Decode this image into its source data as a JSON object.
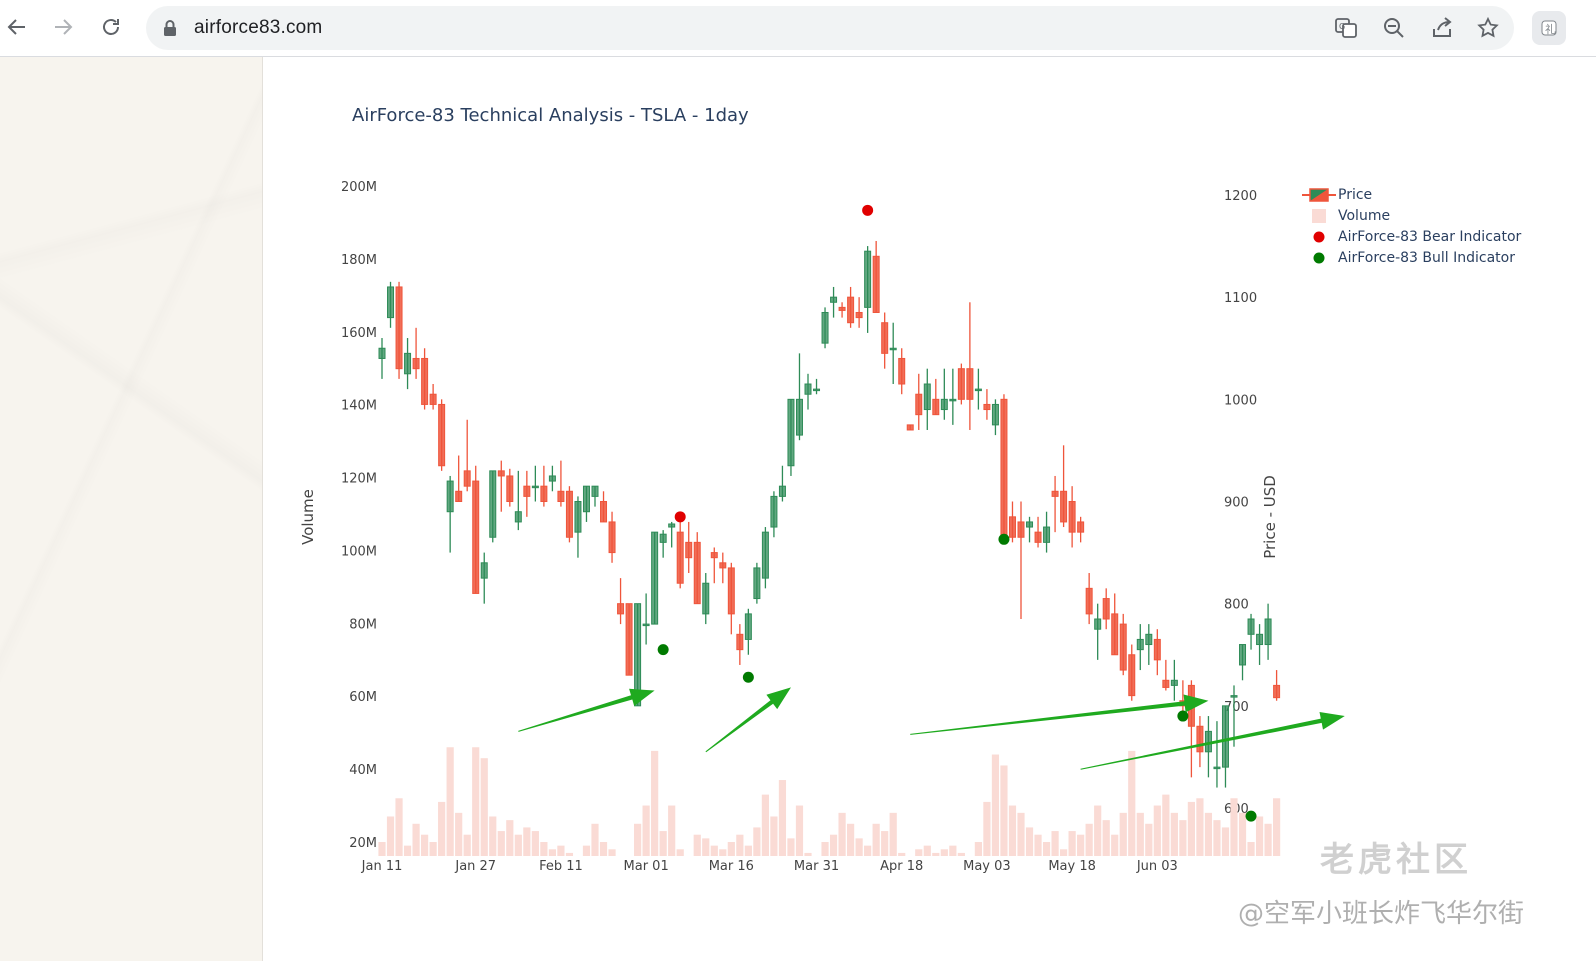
{
  "browser": {
    "url": "airforce83.com",
    "icons": [
      "back-arrow-icon",
      "forward-arrow-icon",
      "reload-icon",
      "lock-icon",
      "translate-icon",
      "zoom-out-icon",
      "share-icon",
      "star-icon",
      "extension-icon"
    ]
  },
  "watermark": {
    "logo_text": "老虎社区",
    "handle_text": "@空军小班长炸飞华尔街"
  },
  "chart_data": {
    "type": "candlestick",
    "title": "AirForce-83 Technical Analysis - TSLA - 1day",
    "ylabel_left": "Volume",
    "ylabel_right": "Price - USD",
    "volume_ticks": [
      "20M",
      "40M",
      "60M",
      "80M",
      "100M",
      "120M",
      "140M",
      "160M",
      "180M",
      "200M"
    ],
    "volume_tick_values": [
      20,
      40,
      60,
      80,
      100,
      120,
      140,
      160,
      180,
      200
    ],
    "volume_range": [
      16,
      202
    ],
    "price_ticks": [
      "600",
      "700",
      "800",
      "900",
      "1000",
      "1100",
      "1200"
    ],
    "price_tick_values": [
      600,
      700,
      800,
      900,
      1000,
      1100,
      1200
    ],
    "price_range": [
      560,
      1210
    ],
    "x_ticks": [
      "Jan 11",
      "Jan 27",
      "Feb 11",
      "Mar 01",
      "Mar 16",
      "Mar 31",
      "Apr 18",
      "May 03",
      "May 18",
      "Jun 03"
    ],
    "x_tick_index": [
      0,
      11,
      21,
      31,
      41,
      51,
      61,
      71,
      81,
      91
    ],
    "legend": [
      {
        "name": "Price",
        "symbol": "candle",
        "color": "#2e8b57"
      },
      {
        "name": "Volume",
        "symbol": "square",
        "color": "#fadbd5"
      },
      {
        "name": "AirForce-83 Bear Indicator",
        "symbol": "dot",
        "color": "#e00000"
      },
      {
        "name": "AirForce-83 Bull Indicator",
        "symbol": "dot",
        "color": "#007a00"
      }
    ],
    "colors": {
      "up": "#2e8b57",
      "down": "#ef553b",
      "volume": "#fadbd5",
      "bear": "#e00000",
      "bull": "#007a00",
      "arrow": "#1faa1f"
    },
    "candles": [
      {
        "o": 1040,
        "h": 1060,
        "l": 1020,
        "c": 1050
      },
      {
        "o": 1080,
        "h": 1115,
        "l": 1070,
        "c": 1110
      },
      {
        "o": 1110,
        "h": 1115,
        "l": 1020,
        "c": 1030
      },
      {
        "o": 1025,
        "h": 1060,
        "l": 1010,
        "c": 1045
      },
      {
        "o": 1040,
        "h": 1070,
        "l": 1020,
        "c": 1030
      },
      {
        "o": 1040,
        "h": 1050,
        "l": 990,
        "c": 995
      },
      {
        "o": 1005,
        "h": 1015,
        "l": 990,
        "c": 995
      },
      {
        "o": 995,
        "h": 1000,
        "l": 930,
        "c": 935
      },
      {
        "o": 890,
        "h": 925,
        "l": 850,
        "c": 920
      },
      {
        "o": 910,
        "h": 945,
        "l": 900,
        "c": 900
      },
      {
        "o": 930,
        "h": 980,
        "l": 910,
        "c": 915
      },
      {
        "o": 920,
        "h": 935,
        "l": 810,
        "c": 810
      },
      {
        "o": 825,
        "h": 850,
        "l": 800,
        "c": 840
      },
      {
        "o": 865,
        "h": 930,
        "l": 860,
        "c": 930
      },
      {
        "o": 930,
        "h": 940,
        "l": 890,
        "c": 925
      },
      {
        "o": 925,
        "h": 932,
        "l": 895,
        "c": 900
      },
      {
        "o": 880,
        "h": 930,
        "l": 872,
        "c": 890
      },
      {
        "o": 915,
        "h": 930,
        "l": 885,
        "c": 905
      },
      {
        "o": 915,
        "h": 935,
        "l": 900,
        "c": 915
      },
      {
        "o": 915,
        "h": 935,
        "l": 895,
        "c": 900
      },
      {
        "o": 920,
        "h": 935,
        "l": 910,
        "c": 925
      },
      {
        "o": 910,
        "h": 940,
        "l": 895,
        "c": 900
      },
      {
        "o": 910,
        "h": 915,
        "l": 860,
        "c": 865
      },
      {
        "o": 870,
        "h": 905,
        "l": 845,
        "c": 900
      },
      {
        "o": 890,
        "h": 915,
        "l": 880,
        "c": 915
      },
      {
        "o": 905,
        "h": 915,
        "l": 895,
        "c": 915
      },
      {
        "o": 900,
        "h": 910,
        "l": 880,
        "c": 880
      },
      {
        "o": 880,
        "h": 890,
        "l": 840,
        "c": 850
      },
      {
        "o": 800,
        "h": 825,
        "l": 780,
        "c": 790
      },
      {
        "o": 800,
        "h": 800,
        "l": 730,
        "c": 730
      },
      {
        "o": 700,
        "h": 800,
        "l": 700,
        "c": 800
      },
      {
        "o": 780,
        "h": 810,
        "l": 760,
        "c": 780
      },
      {
        "o": 780,
        "h": 870,
        "l": 780,
        "c": 870
      },
      {
        "o": 860,
        "h": 872,
        "l": 845,
        "c": 868
      },
      {
        "o": 875,
        "h": 880,
        "l": 855,
        "c": 878
      },
      {
        "o": 870,
        "h": 880,
        "l": 815,
        "c": 820
      },
      {
        "o": 860,
        "h": 880,
        "l": 830,
        "c": 845
      },
      {
        "o": 860,
        "h": 870,
        "l": 800,
        "c": 800
      },
      {
        "o": 790,
        "h": 830,
        "l": 780,
        "c": 820
      },
      {
        "o": 850,
        "h": 855,
        "l": 820,
        "c": 845
      },
      {
        "o": 840,
        "h": 850,
        "l": 820,
        "c": 835
      },
      {
        "o": 835,
        "h": 840,
        "l": 770,
        "c": 790
      },
      {
        "o": 770,
        "h": 780,
        "l": 740,
        "c": 755
      },
      {
        "o": 765,
        "h": 795,
        "l": 750,
        "c": 790
      },
      {
        "o": 805,
        "h": 840,
        "l": 800,
        "c": 835
      },
      {
        "o": 825,
        "h": 875,
        "l": 815,
        "c": 870
      },
      {
        "o": 875,
        "h": 910,
        "l": 865,
        "c": 905
      },
      {
        "o": 905,
        "h": 935,
        "l": 900,
        "c": 915
      },
      {
        "o": 935,
        "h": 1000,
        "l": 925,
        "c": 1000
      },
      {
        "o": 965,
        "h": 1045,
        "l": 960,
        "c": 1000
      },
      {
        "o": 1005,
        "h": 1025,
        "l": 990,
        "c": 1015
      },
      {
        "o": 1010,
        "h": 1020,
        "l": 1005,
        "c": 1010
      },
      {
        "o": 1055,
        "h": 1090,
        "l": 1050,
        "c": 1085
      },
      {
        "o": 1095,
        "h": 1110,
        "l": 1080,
        "c": 1100
      },
      {
        "o": 1090,
        "h": 1095,
        "l": 1080,
        "c": 1087
      },
      {
        "o": 1100,
        "h": 1110,
        "l": 1070,
        "c": 1075
      },
      {
        "o": 1085,
        "h": 1100,
        "l": 1070,
        "c": 1080
      },
      {
        "o": 1090,
        "h": 1150,
        "l": 1065,
        "c": 1145
      },
      {
        "o": 1140,
        "h": 1155,
        "l": 1085,
        "c": 1085
      },
      {
        "o": 1075,
        "h": 1085,
        "l": 1030,
        "c": 1045
      },
      {
        "o": 1050,
        "h": 1075,
        "l": 1015,
        "c": 1050
      },
      {
        "o": 1040,
        "h": 1050,
        "l": 1005,
        "c": 1015
      },
      {
        "o": 975,
        "h": 975,
        "l": 970,
        "c": 970
      },
      {
        "o": 1005,
        "h": 1025,
        "l": 970,
        "c": 985
      },
      {
        "o": 990,
        "h": 1030,
        "l": 970,
        "c": 1015
      },
      {
        "o": 1000,
        "h": 1020,
        "l": 985,
        "c": 985
      },
      {
        "o": 990,
        "h": 1030,
        "l": 980,
        "c": 1000
      },
      {
        "o": 1000,
        "h": 1030,
        "l": 975,
        "c": 1000
      },
      {
        "o": 1030,
        "h": 1035,
        "l": 995,
        "c": 1000
      },
      {
        "o": 1030,
        "h": 1095,
        "l": 970,
        "c": 1000
      },
      {
        "o": 1010,
        "h": 1030,
        "l": 990,
        "c": 1010
      },
      {
        "o": 995,
        "h": 1010,
        "l": 980,
        "c": 990
      },
      {
        "o": 975,
        "h": 1000,
        "l": 965,
        "c": 995
      },
      {
        "o": 1000,
        "h": 1005,
        "l": 860,
        "c": 860
      },
      {
        "o": 885,
        "h": 900,
        "l": 860,
        "c": 865
      },
      {
        "o": 880,
        "h": 900,
        "l": 785,
        "c": 865
      },
      {
        "o": 875,
        "h": 885,
        "l": 860,
        "c": 880
      },
      {
        "o": 870,
        "h": 885,
        "l": 855,
        "c": 860
      },
      {
        "o": 860,
        "h": 890,
        "l": 850,
        "c": 875
      },
      {
        "o": 910,
        "h": 925,
        "l": 870,
        "c": 905
      },
      {
        "o": 910,
        "h": 955,
        "l": 875,
        "c": 880
      },
      {
        "o": 900,
        "h": 915,
        "l": 855,
        "c": 870
      },
      {
        "o": 880,
        "h": 885,
        "l": 860,
        "c": 870
      },
      {
        "o": 815,
        "h": 830,
        "l": 780,
        "c": 790
      },
      {
        "o": 775,
        "h": 800,
        "l": 745,
        "c": 785
      },
      {
        "o": 805,
        "h": 815,
        "l": 775,
        "c": 785
      },
      {
        "o": 790,
        "h": 810,
        "l": 750,
        "c": 750
      },
      {
        "o": 780,
        "h": 790,
        "l": 730,
        "c": 735
      },
      {
        "o": 750,
        "h": 760,
        "l": 705,
        "c": 710
      },
      {
        "o": 755,
        "h": 780,
        "l": 735,
        "c": 765
      },
      {
        "o": 760,
        "h": 780,
        "l": 740,
        "c": 770
      },
      {
        "o": 765,
        "h": 775,
        "l": 730,
        "c": 745
      },
      {
        "o": 725,
        "h": 745,
        "l": 715,
        "c": 718
      },
      {
        "o": 720,
        "h": 745,
        "l": 705,
        "c": 725
      },
      {
        "o": 705,
        "h": 725,
        "l": 690,
        "c": 700
      },
      {
        "o": 720,
        "h": 725,
        "l": 630,
        "c": 680
      },
      {
        "o": 680,
        "h": 690,
        "l": 640,
        "c": 655
      },
      {
        "o": 655,
        "h": 690,
        "l": 630,
        "c": 675
      },
      {
        "o": 640,
        "h": 685,
        "l": 620,
        "c": 640
      },
      {
        "o": 640,
        "h": 700,
        "l": 620,
        "c": 700
      },
      {
        "o": 710,
        "h": 720,
        "l": 660,
        "c": 710
      },
      {
        "o": 740,
        "h": 760,
        "l": 725,
        "c": 760
      },
      {
        "o": 770,
        "h": 790,
        "l": 755,
        "c": 785
      },
      {
        "o": 760,
        "h": 780,
        "l": 740,
        "c": 770
      },
      {
        "o": 760,
        "h": 800,
        "l": 745,
        "c": 785
      },
      {
        "o": 720,
        "h": 735,
        "l": 705,
        "c": 708
      }
    ],
    "volumes": [
      20,
      27,
      32,
      19,
      25,
      22,
      20,
      31,
      46,
      28,
      22,
      46,
      43,
      27,
      23,
      26,
      22,
      24,
      23,
      20,
      18,
      19,
      17,
      16,
      19,
      25,
      20,
      18,
      16,
      16,
      25,
      30,
      45,
      23,
      30,
      18,
      16,
      22,
      21,
      19,
      18,
      20,
      22,
      19,
      24,
      33,
      27,
      37,
      21,
      30,
      17,
      16,
      20,
      22,
      28,
      25,
      21,
      19,
      25,
      23,
      28,
      17,
      16,
      18,
      19,
      17,
      18,
      19,
      17,
      16,
      20,
      31,
      44,
      41,
      30,
      28,
      24,
      22,
      20,
      23,
      18,
      23,
      22,
      25,
      30,
      26,
      22,
      28,
      45,
      28,
      25,
      30,
      33,
      28,
      26,
      31,
      32,
      28,
      26,
      24,
      32,
      28,
      20,
      27,
      25,
      32
    ],
    "bear_indicators": [
      {
        "index": 35,
        "price": 885
      },
      {
        "index": 57,
        "price": 1185
      }
    ],
    "bull_indicators": [
      {
        "index": 33,
        "price": 755
      },
      {
        "index": 43,
        "price": 728
      },
      {
        "index": 73,
        "price": 863
      },
      {
        "index": 94,
        "price": 690
      },
      {
        "index": 102,
        "price": 592
      }
    ],
    "annotation_arrows": [
      {
        "from": {
          "index": 16,
          "price": 675
        },
        "to": {
          "index": 32,
          "price": 715
        }
      },
      {
        "from": {
          "index": 38,
          "price": 655
        },
        "to": {
          "index": 48,
          "price": 718
        }
      },
      {
        "from": {
          "index": 62,
          "price": 672
        },
        "to": {
          "index": 97,
          "price": 705
        }
      },
      {
        "from": {
          "index": 82,
          "price": 638
        },
        "to": {
          "index": 113,
          "price": 690
        }
      }
    ]
  }
}
